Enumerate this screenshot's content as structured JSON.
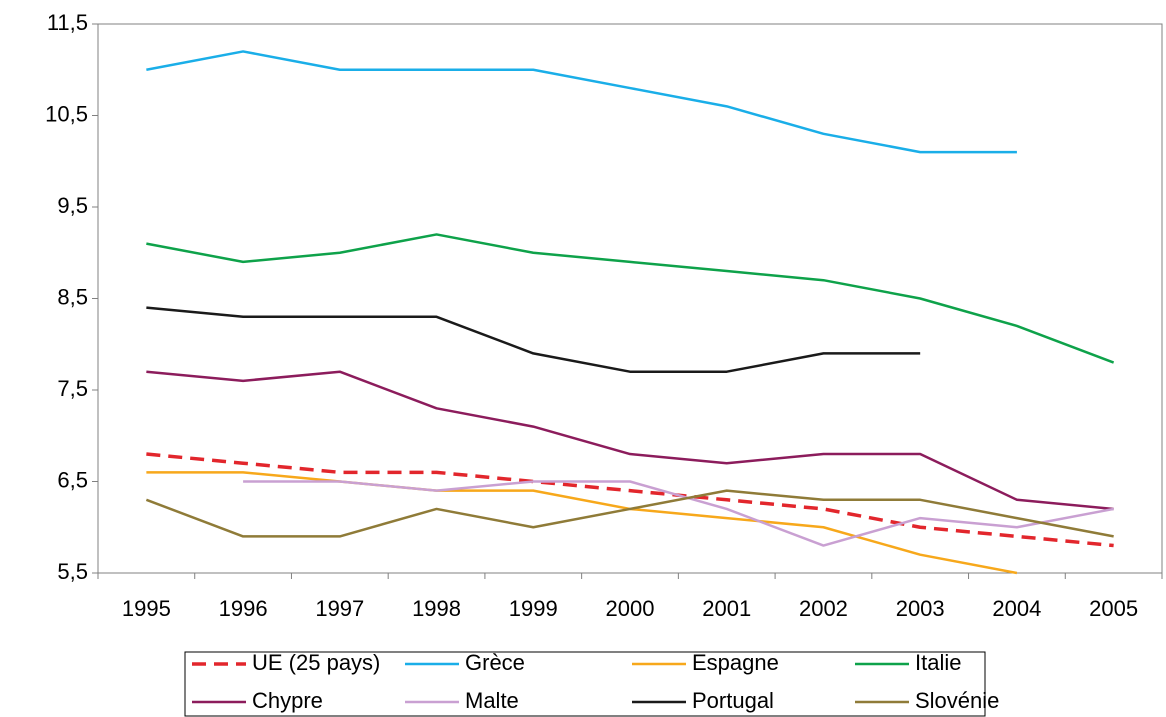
{
  "chart_data": {
    "type": "line",
    "categories": [
      "1995",
      "1996",
      "1997",
      "1998",
      "1999",
      "2000",
      "2001",
      "2002",
      "2003",
      "2004",
      "2005"
    ],
    "ylim": [
      5.5,
      11.5
    ],
    "yticks": [
      {
        "value": 5.5,
        "label": "5,5"
      },
      {
        "value": 6.5,
        "label": "6,5"
      },
      {
        "value": 7.5,
        "label": "7,5"
      },
      {
        "value": 8.5,
        "label": "8,5"
      },
      {
        "value": 9.5,
        "label": "9,5"
      },
      {
        "value": 10.5,
        "label": "10,5"
      },
      {
        "value": 11.5,
        "label": "11,5"
      }
    ],
    "grid": false,
    "legend": "bottom",
    "series": [
      {
        "name": "UE (25 pays)",
        "color": "#e2262c",
        "dash": true,
        "values": [
          6.8,
          6.7,
          6.6,
          6.6,
          6.5,
          6.4,
          6.3,
          6.2,
          6.0,
          5.9,
          5.8
        ]
      },
      {
        "name": "Grèce",
        "color": "#1aaee8",
        "values": [
          11.0,
          11.2,
          11.0,
          11.0,
          11.0,
          10.8,
          10.6,
          10.3,
          10.1,
          10.1,
          null
        ]
      },
      {
        "name": "Espagne",
        "color": "#f7a81b",
        "values": [
          6.6,
          6.6,
          6.5,
          6.4,
          6.4,
          6.2,
          6.1,
          6.0,
          5.7,
          5.5,
          null
        ]
      },
      {
        "name": "Italie",
        "color": "#0ea24a",
        "values": [
          9.1,
          8.9,
          9.0,
          9.2,
          9.0,
          8.9,
          8.8,
          8.7,
          8.5,
          8.2,
          7.8
        ]
      },
      {
        "name": "Chypre",
        "color": "#8c1c5c",
        "values": [
          7.7,
          7.6,
          7.7,
          7.3,
          7.1,
          6.8,
          6.7,
          6.8,
          6.8,
          6.3,
          6.2
        ]
      },
      {
        "name": "Malte",
        "color": "#c9a0d2",
        "values": [
          null,
          6.5,
          6.5,
          6.4,
          6.5,
          6.5,
          6.2,
          5.8,
          6.1,
          6.0,
          6.2
        ]
      },
      {
        "name": "Portugal",
        "color": "#1a1a1a",
        "values": [
          8.4,
          8.3,
          8.3,
          8.3,
          7.9,
          7.7,
          7.7,
          7.9,
          7.9,
          null,
          null
        ]
      },
      {
        "name": "Slovénie",
        "color": "#8f7b38",
        "values": [
          6.3,
          5.9,
          5.9,
          6.2,
          6.0,
          6.2,
          6.4,
          6.3,
          6.3,
          6.1,
          5.9
        ]
      }
    ]
  }
}
